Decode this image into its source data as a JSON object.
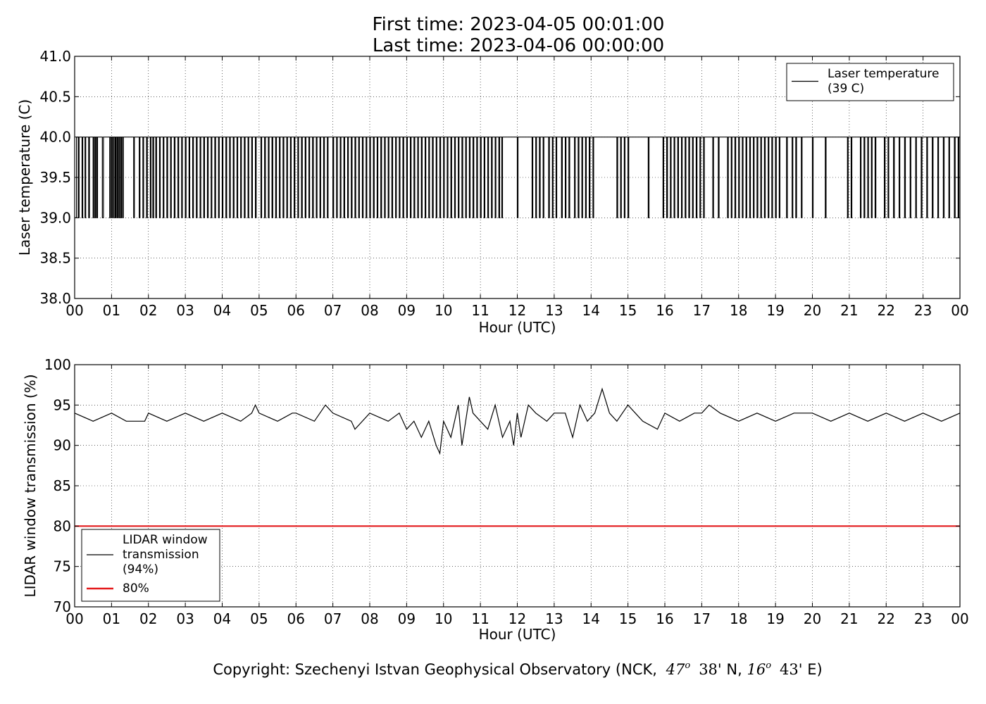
{
  "header": {
    "first_time": "First time: 2023-04-05 00:01:00",
    "last_time": "Last time: 2023-04-06 00:00:00"
  },
  "footer": {
    "copyright_prefix": "Copyright: Szechenyi Istvan Geophysical Observatory (NCK,",
    "lat_deg": "47",
    "lat_min": "38'",
    "lat_dir": "N,",
    "lon_deg": "16",
    "lon_min": "43'",
    "lon_dir": "E)",
    "degree_symbol": "o"
  },
  "chart_data": [
    {
      "type": "line",
      "xlabel": "Hour (UTC)",
      "ylabel": "Laser temperature (C)",
      "xlim": [
        0,
        24
      ],
      "ylim": [
        38.0,
        41.0
      ],
      "x_ticks": [
        "00",
        "01",
        "02",
        "03",
        "04",
        "05",
        "06",
        "07",
        "08",
        "09",
        "10",
        "11",
        "12",
        "13",
        "14",
        "15",
        "16",
        "17",
        "18",
        "19",
        "20",
        "21",
        "22",
        "23",
        "00"
      ],
      "y_ticks": [
        "38.0",
        "38.5",
        "39.0",
        "39.5",
        "40.0",
        "40.5",
        "41.0"
      ],
      "y_tick_values": [
        38.0,
        38.5,
        39.0,
        39.5,
        40.0,
        40.5,
        41.0
      ],
      "grid": true,
      "legend_position": "top-right",
      "legend": [
        {
          "lines": [
            "Laser temperature",
            "(39 C)"
          ],
          "color": "#000000"
        }
      ],
      "series": [
        {
          "name": "Laser temperature (39 C)",
          "color": "#000000",
          "values_description_only": "toggles",
          "x": [
            0.0,
            0.05,
            0.1,
            0.12,
            0.2,
            0.22,
            0.28,
            0.3,
            0.38,
            0.4,
            0.5,
            0.52,
            0.55,
            0.57,
            0.6,
            0.62,
            0.75,
            0.78,
            0.95,
            0.97,
            1.0,
            1.02,
            1.05,
            1.07,
            1.1,
            1.12,
            1.15,
            1.17,
            1.2,
            1.22,
            1.25,
            1.27,
            1.3,
            1.32,
            1.6,
            1.62,
            1.75,
            1.77,
            1.85,
            1.87,
            1.95,
            1.97,
            2.05,
            2.07,
            2.12,
            2.14,
            2.2,
            2.22,
            2.3,
            2.32,
            2.4,
            2.42,
            2.5,
            2.52,
            2.6,
            2.62,
            2.7,
            2.72,
            2.8,
            2.82,
            2.9,
            2.92,
            3.0,
            3.02,
            3.1,
            3.12,
            3.2,
            3.22,
            3.3,
            3.32,
            3.4,
            3.42,
            3.5,
            3.52,
            3.6,
            3.62,
            3.7,
            3.72,
            3.8,
            3.82,
            3.9,
            3.92,
            4.0,
            4.02,
            4.1,
            4.12,
            4.2,
            4.22,
            4.3,
            4.32,
            4.4,
            4.42,
            4.5,
            4.52,
            4.6,
            4.62,
            4.7,
            4.72,
            4.8,
            4.82,
            4.9,
            4.92,
            5.05,
            5.07,
            5.15,
            5.17,
            5.25,
            5.27,
            5.35,
            5.37,
            5.45,
            5.47,
            5.55,
            5.57,
            5.65,
            5.67,
            5.75,
            5.77,
            5.85,
            5.87,
            5.95,
            5.97,
            6.05,
            6.07,
            6.15,
            6.17,
            6.25,
            6.27,
            6.35,
            6.37,
            6.45,
            6.47,
            6.55,
            6.57,
            6.65,
            6.67,
            6.75,
            6.77,
            6.85,
            6.87,
            7.0,
            7.02,
            7.1,
            7.12,
            7.2,
            7.22,
            7.3,
            7.32,
            7.4,
            7.42,
            7.5,
            7.52,
            7.6,
            7.62,
            7.7,
            7.72,
            7.8,
            7.82,
            7.9,
            7.92,
            8.0,
            8.02,
            8.1,
            8.12,
            8.2,
            8.22,
            8.3,
            8.32,
            8.4,
            8.42,
            8.5,
            8.52,
            8.6,
            8.62,
            8.7,
            8.72,
            8.8,
            8.82,
            8.9,
            8.92,
            9.0,
            9.02,
            9.1,
            9.12,
            9.2,
            9.22,
            9.3,
            9.32,
            9.4,
            9.42,
            9.5,
            9.52,
            9.6,
            9.62,
            9.7,
            9.72,
            9.8,
            9.82,
            9.9,
            9.92,
            10.0,
            10.02,
            10.1,
            10.12,
            10.2,
            10.22,
            10.3,
            10.32,
            10.4,
            10.42,
            10.5,
            10.52,
            10.6,
            10.62,
            10.7,
            10.72,
            10.8,
            10.82,
            10.9,
            10.92,
            11.0,
            11.02,
            11.1,
            11.12,
            11.2,
            11.22,
            11.3,
            11.32,
            11.4,
            11.42,
            11.5,
            11.52,
            11.58,
            11.6,
            12.0,
            12.02,
            12.4,
            12.42,
            12.5,
            12.52,
            12.6,
            12.62,
            12.7,
            12.72,
            12.85,
            12.87,
            12.95,
            12.97,
            13.05,
            13.07,
            13.2,
            13.22,
            13.3,
            13.32,
            13.4,
            13.42,
            13.55,
            13.57,
            13.65,
            13.67,
            13.75,
            13.77,
            13.85,
            13.87,
            13.95,
            13.97,
            14.05,
            14.07,
            14.7,
            14.72,
            14.8,
            14.82,
            14.9,
            14.92,
            15.0,
            15.02,
            15.55,
            15.57,
            15.95,
            15.97,
            16.05,
            16.07,
            16.15,
            16.17,
            16.25,
            16.27,
            16.35,
            16.37,
            16.45,
            16.47,
            16.55,
            16.57,
            16.65,
            16.67,
            16.75,
            16.77,
            16.85,
            16.87,
            16.95,
            16.97,
            17.05,
            17.07,
            17.3,
            17.32,
            17.45,
            17.47,
            17.7,
            17.72,
            17.8,
            17.82,
            17.9,
            17.92,
            18.0,
            18.02,
            18.1,
            18.12,
            18.2,
            18.22,
            18.3,
            18.32,
            18.4,
            18.42,
            18.5,
            18.52,
            18.6,
            18.62,
            18.7,
            18.72,
            18.8,
            18.82,
            18.9,
            18.92,
            19.0,
            19.02,
            19.1,
            19.12,
            19.3,
            19.32,
            19.45,
            19.47,
            19.55,
            19.57,
            19.7,
            19.72,
            20.0,
            20.02,
            20.35,
            20.37,
            20.95,
            20.97,
            21.05,
            21.07,
            21.3,
            21.32,
            21.4,
            21.42,
            21.5,
            21.52,
            21.6,
            21.62,
            21.7,
            21.72,
            21.95,
            21.97,
            22.05,
            22.07,
            22.2,
            22.22,
            22.35,
            22.37,
            22.5,
            22.52,
            22.65,
            22.67,
            22.8,
            22.82,
            22.95,
            22.97,
            23.1,
            23.12,
            23.25,
            23.27,
            23.4,
            23.42,
            23.55,
            23.57,
            23.7,
            23.72,
            23.85,
            23.87,
            23.95,
            23.97,
            24.0
          ]
        }
      ]
    },
    {
      "type": "line",
      "xlabel": "Hour (UTC)",
      "ylabel": "LIDAR window transmission (%)",
      "xlim": [
        0,
        24
      ],
      "ylim": [
        70,
        100
      ],
      "x_ticks": [
        "00",
        "01",
        "02",
        "03",
        "04",
        "05",
        "06",
        "07",
        "08",
        "09",
        "10",
        "11",
        "12",
        "13",
        "14",
        "15",
        "16",
        "17",
        "18",
        "19",
        "20",
        "21",
        "22",
        "23",
        "00"
      ],
      "y_ticks": [
        "70",
        "75",
        "80",
        "85",
        "90",
        "95",
        "100"
      ],
      "y_tick_values": [
        70,
        75,
        80,
        85,
        90,
        95,
        100
      ],
      "grid": true,
      "legend_position": "bottom-left",
      "legend": [
        {
          "lines": [
            "LIDAR window",
            "transmission",
            "(94%)"
          ],
          "color": "#000000"
        },
        {
          "lines": [
            "80%"
          ],
          "color": "#e41a1c"
        }
      ],
      "series": [
        {
          "name": "LIDAR window transmission (94%)",
          "color": "#000000",
          "x": [
            0.0,
            0.5,
            1.0,
            1.4,
            1.9,
            2.0,
            2.5,
            3.0,
            3.5,
            4.0,
            4.5,
            4.8,
            4.9,
            5.0,
            5.5,
            5.9,
            6.0,
            6.5,
            6.8,
            7.0,
            7.5,
            7.6,
            8.0,
            8.5,
            8.8,
            9.0,
            9.2,
            9.4,
            9.6,
            9.8,
            9.9,
            10.0,
            10.2,
            10.4,
            10.5,
            10.6,
            10.7,
            10.8,
            11.0,
            11.2,
            11.4,
            11.6,
            11.8,
            11.9,
            12.0,
            12.1,
            12.3,
            12.5,
            12.8,
            13.0,
            13.3,
            13.5,
            13.7,
            13.9,
            14.1,
            14.3,
            14.5,
            14.7,
            15.0,
            15.2,
            15.4,
            15.8,
            16.0,
            16.4,
            16.8,
            17.0,
            17.2,
            17.5,
            18.0,
            18.5,
            19.0,
            19.5,
            20.0,
            20.5,
            21.0,
            21.5,
            22.0,
            22.5,
            23.0,
            23.5,
            24.0
          ],
          "values": [
            94,
            93,
            94,
            93,
            93,
            94,
            93,
            94,
            93,
            94,
            93,
            94,
            95,
            94,
            93,
            94,
            94,
            93,
            95,
            94,
            93,
            92,
            94,
            93,
            94,
            92,
            93,
            91,
            93,
            90,
            89,
            93,
            91,
            95,
            90,
            93,
            96,
            94,
            93,
            92,
            95,
            91,
            93,
            90,
            94,
            91,
            95,
            94,
            93,
            94,
            94,
            91,
            95,
            93,
            94,
            97,
            94,
            93,
            95,
            94,
            93,
            92,
            94,
            93,
            94,
            94,
            95,
            94,
            93,
            94,
            93,
            94,
            94,
            93,
            94,
            93,
            94,
            93,
            94,
            93,
            94
          ]
        },
        {
          "name": "80%",
          "color": "#e41a1c",
          "x": [
            0,
            24
          ],
          "values": [
            80,
            80
          ]
        }
      ]
    }
  ]
}
